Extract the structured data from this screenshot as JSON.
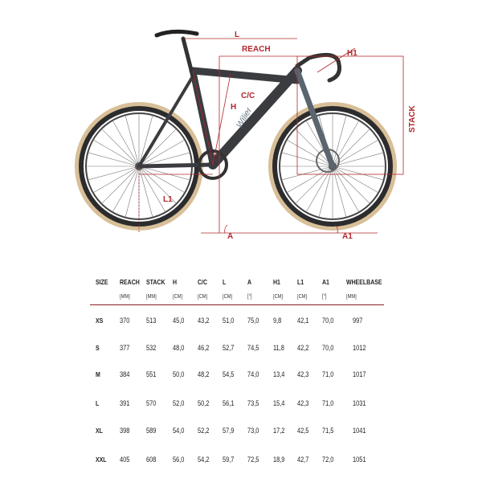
{
  "brand_logo": "Wilier",
  "colors": {
    "geometry_lines": "#b3262c",
    "frame": "#3a3c40",
    "tire_wall": "#d8bf98",
    "rule": "#8a1f24"
  },
  "diagram_labels": {
    "l": "L",
    "reach": "REACH",
    "h1": "H1",
    "cc": "C/C",
    "h": "H",
    "stack": "STACK",
    "l1": "L1",
    "a": "A",
    "a1": "A1"
  },
  "table": {
    "columns": [
      {
        "name": "SIZE",
        "unit": ""
      },
      {
        "name": "REACH",
        "unit": "[MM]"
      },
      {
        "name": "STACK",
        "unit": "[MM]"
      },
      {
        "name": "H",
        "unit": "[CM]"
      },
      {
        "name": "C/C",
        "unit": "[CM]"
      },
      {
        "name": "L",
        "unit": "[CM]"
      },
      {
        "name": "A",
        "unit": "[°]"
      },
      {
        "name": "H1",
        "unit": "[CM]"
      },
      {
        "name": "L1",
        "unit": "[CM]"
      },
      {
        "name": "A1",
        "unit": "[°]"
      },
      {
        "name": "WHEELBASE",
        "unit": "[MM]"
      }
    ],
    "rows": [
      [
        "XS",
        "370",
        "513",
        "45,0",
        "43,2",
        "51,0",
        "75,0",
        "9,8",
        "42,1",
        "70,0",
        "997"
      ],
      [
        "S",
        "377",
        "532",
        "48,0",
        "46,2",
        "52,7",
        "74,5",
        "11,8",
        "42,2",
        "70,0",
        "1012"
      ],
      [
        "M",
        "384",
        "551",
        "50,0",
        "48,2",
        "54,5",
        "74,0",
        "13,4",
        "42,3",
        "71,0",
        "1017"
      ],
      [
        "L",
        "391",
        "570",
        "52,0",
        "50,2",
        "56,1",
        "73,5",
        "15,4",
        "42,3",
        "71,0",
        "1031"
      ],
      [
        "XL",
        "398",
        "589",
        "54,0",
        "52,2",
        "57,9",
        "73,0",
        "17,2",
        "42,5",
        "71,5",
        "1041"
      ],
      [
        "XXL",
        "405",
        "608",
        "56,0",
        "54,2",
        "59,7",
        "72,5",
        "18,9",
        "42,7",
        "72,0",
        "1051"
      ]
    ]
  }
}
